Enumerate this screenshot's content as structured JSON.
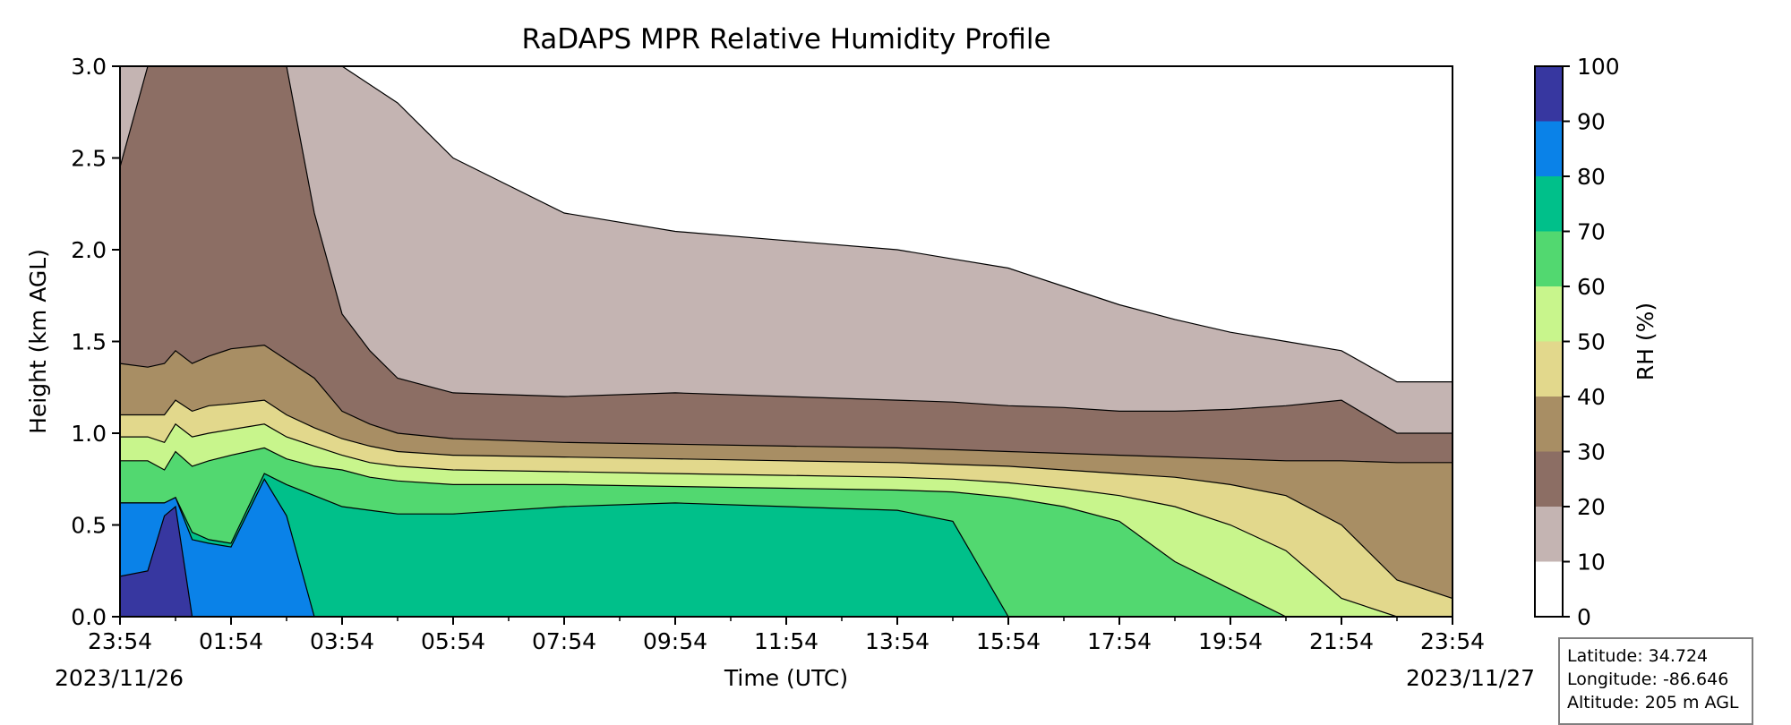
{
  "chart_data": {
    "type": "heatmap",
    "title": "RaDAPS MPR Relative Humidity Profile",
    "xlabel": "Time (UTC)",
    "ylabel": "Height (km AGL)",
    "x_tick_labels": [
      "23:54",
      "01:54",
      "03:54",
      "05:54",
      "07:54",
      "09:54",
      "11:54",
      "13:54",
      "15:54",
      "17:54",
      "19:54",
      "21:54",
      "23:54"
    ],
    "x_range_hours": [
      0,
      24
    ],
    "y_ticks": [
      "0.0",
      "0.5",
      "1.0",
      "1.5",
      "2.0",
      "2.5",
      "3.0"
    ],
    "ylim": [
      0,
      3
    ],
    "start_date": "2023/11/26",
    "end_date": "2023/11/27",
    "colorbar": {
      "label": "RH (%)",
      "ticks": [
        "0",
        "10",
        "20",
        "30",
        "40",
        "50",
        "60",
        "70",
        "80",
        "90",
        "100"
      ],
      "levels": [
        0,
        10,
        20,
        30,
        40,
        50,
        60,
        70,
        80,
        90,
        100
      ],
      "colors": [
        "#ffffff",
        "#c4b4b2",
        "#8c6e64",
        "#a88e64",
        "#e2d88c",
        "#c8f58c",
        "#52d870",
        "#00c08a",
        "#0a82e8",
        "#3737a0"
      ]
    },
    "contour_boundaries": {
      "hours": [
        0,
        0.5,
        0.8,
        1.0,
        1.3,
        1.6,
        2.0,
        2.6,
        3.0,
        3.5,
        4.0,
        4.5,
        5.0,
        6.0,
        8.0,
        10.0,
        12.0,
        14.0,
        15.0,
        16.0,
        17.0,
        18.0,
        19.0,
        20.0,
        21.0,
        22.0,
        23.0,
        24.0
      ],
      "rh90_top": [
        0.22,
        0.25,
        0.55,
        0.6,
        0,
        0,
        0,
        0,
        0,
        0,
        0,
        0,
        0,
        0,
        0,
        0,
        0,
        0,
        0,
        0,
        0,
        0,
        0,
        0,
        0,
        0,
        0,
        0
      ],
      "rh80_top": [
        0.62,
        0.62,
        0.62,
        0.65,
        0.42,
        0.4,
        0.38,
        0.75,
        0.55,
        0,
        0,
        0,
        0,
        0,
        0,
        0,
        0,
        0,
        0,
        0,
        0,
        0,
        0,
        0,
        0,
        0,
        0,
        0
      ],
      "rh70_top": [
        0.62,
        0.62,
        0.62,
        0.65,
        0.46,
        0.42,
        0.4,
        0.78,
        0.72,
        0.66,
        0.6,
        0.58,
        0.56,
        0.56,
        0.6,
        0.62,
        0.6,
        0.58,
        0.52,
        0,
        0,
        0,
        0,
        0,
        0,
        0,
        0,
        0
      ],
      "rh60_top": [
        0.85,
        0.85,
        0.8,
        0.9,
        0.82,
        0.85,
        0.88,
        0.92,
        0.86,
        0.82,
        0.8,
        0.76,
        0.74,
        0.72,
        0.72,
        0.71,
        0.7,
        0.69,
        0.68,
        0.65,
        0.6,
        0.52,
        0.3,
        0.15,
        0,
        0,
        0,
        0
      ],
      "rh50_top": [
        0.98,
        0.98,
        0.95,
        1.05,
        0.98,
        1.0,
        1.02,
        1.05,
        0.98,
        0.93,
        0.88,
        0.84,
        0.82,
        0.8,
        0.79,
        0.78,
        0.77,
        0.76,
        0.75,
        0.73,
        0.7,
        0.66,
        0.6,
        0.5,
        0.36,
        0.1,
        0,
        0
      ],
      "rh40_top": [
        1.1,
        1.1,
        1.1,
        1.18,
        1.12,
        1.15,
        1.16,
        1.18,
        1.1,
        1.03,
        0.97,
        0.93,
        0.9,
        0.88,
        0.87,
        0.86,
        0.85,
        0.84,
        0.83,
        0.82,
        0.8,
        0.78,
        0.76,
        0.72,
        0.66,
        0.5,
        0.2,
        0.1
      ],
      "rh30_top": [
        1.38,
        1.36,
        1.38,
        1.45,
        1.38,
        1.42,
        1.46,
        1.48,
        1.4,
        1.3,
        1.12,
        1.05,
        1.0,
        0.97,
        0.95,
        0.94,
        0.93,
        0.92,
        0.91,
        0.9,
        0.89,
        0.88,
        0.87,
        0.86,
        0.85,
        0.85,
        0.84,
        0.84
      ],
      "rh20_top": [
        2.45,
        3.0,
        3.0,
        3.0,
        3.0,
        3.0,
        3.0,
        3.0,
        3.0,
        2.2,
        1.65,
        1.45,
        1.3,
        1.22,
        1.2,
        1.22,
        1.2,
        1.18,
        1.17,
        1.15,
        1.14,
        1.12,
        1.12,
        1.13,
        1.15,
        1.18,
        1.0,
        1.0
      ],
      "rh10_top": [
        3.0,
        3.0,
        3.0,
        3.0,
        3.0,
        3.0,
        3.0,
        3.0,
        3.0,
        3.0,
        3.0,
        2.9,
        2.8,
        2.5,
        2.2,
        2.1,
        2.05,
        2.0,
        1.95,
        1.9,
        1.8,
        1.7,
        1.62,
        1.55,
        1.5,
        1.45,
        1.28,
        1.28
      ]
    }
  },
  "location": {
    "latitude_label": "Latitude: 34.724",
    "longitude_label": "Longitude: -86.646",
    "altitude_label": "Altitude: 205 m AGL"
  }
}
